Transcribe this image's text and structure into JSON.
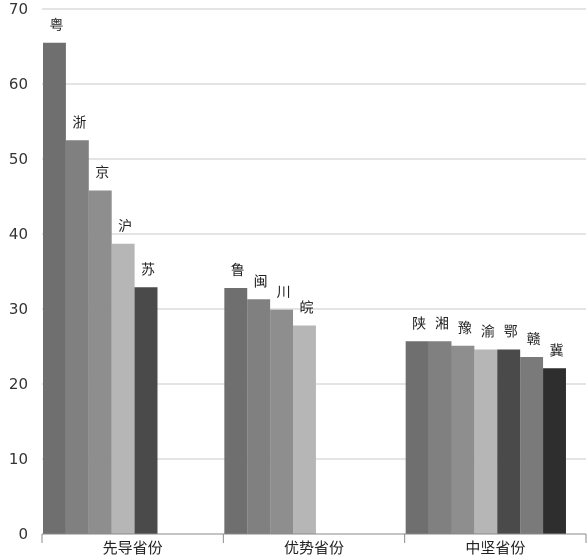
{
  "chart_data": {
    "type": "bar",
    "title": "",
    "xlabel": "",
    "ylabel": "",
    "ylim": [
      0,
      70
    ],
    "yticks": [
      0,
      10,
      20,
      30,
      40,
      50,
      60,
      70
    ],
    "grid": true,
    "legend": "none",
    "groups": [
      {
        "name": "先导省份",
        "bars": [
          {
            "label": "粤",
            "value": 65.5,
            "color": "#6f6f6f"
          },
          {
            "label": "浙",
            "value": 52.5,
            "color": "#808080"
          },
          {
            "label": "京",
            "value": 45.8,
            "color": "#8e8e8e"
          },
          {
            "label": "沪",
            "value": 38.7,
            "color": "#b6b6b6"
          },
          {
            "label": "苏",
            "value": 32.9,
            "color": "#4a4a4a"
          }
        ]
      },
      {
        "name": "优势省份",
        "bars": [
          {
            "label": "鲁",
            "value": 32.8,
            "color": "#6f6f6f"
          },
          {
            "label": "闽",
            "value": 31.3,
            "color": "#808080"
          },
          {
            "label": "川",
            "value": 29.9,
            "color": "#8e8e8e"
          },
          {
            "label": "皖",
            "value": 27.8,
            "color": "#b6b6b6"
          }
        ]
      },
      {
        "name": "中坚省份",
        "bars": [
          {
            "label": "陕",
            "value": 25.7,
            "color": "#6f6f6f"
          },
          {
            "label": "湘",
            "value": 25.7,
            "color": "#808080"
          },
          {
            "label": "豫",
            "value": 25.1,
            "color": "#8e8e8e"
          },
          {
            "label": "渝",
            "value": 24.6,
            "color": "#b6b6b6"
          },
          {
            "label": "鄂",
            "value": 24.6,
            "color": "#4a4a4a"
          },
          {
            "label": "赣",
            "value": 23.6,
            "color": "#7a7a7a"
          },
          {
            "label": "冀",
            "value": 22.1,
            "color": "#2e2e2e"
          }
        ]
      }
    ]
  }
}
